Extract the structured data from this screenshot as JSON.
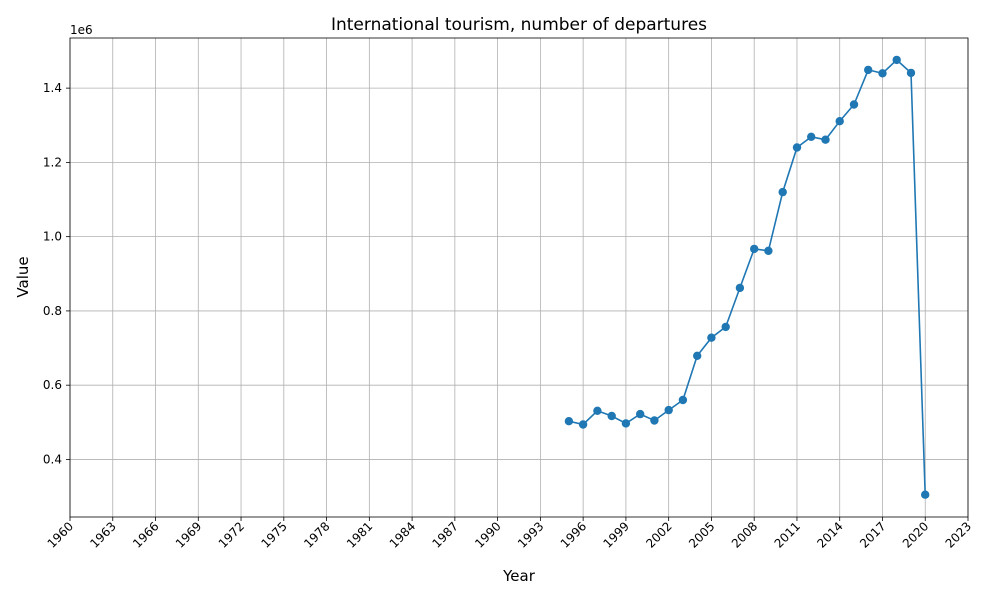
{
  "chart_data": {
    "type": "line",
    "title": "International tourism, number of departures",
    "xlabel": "Year",
    "ylabel": "Value",
    "y_offset_label": "1e6",
    "grid": true,
    "xlim": [
      1960,
      2023
    ],
    "ylim": [
      0.245,
      1.535
    ],
    "x_ticks": [
      1960,
      1963,
      1966,
      1969,
      1972,
      1975,
      1978,
      1981,
      1984,
      1987,
      1990,
      1993,
      1996,
      1999,
      2002,
      2005,
      2008,
      2011,
      2014,
      2017,
      2020,
      2023
    ],
    "y_ticks": [
      0.4,
      0.6,
      0.8,
      1.0,
      1.2,
      1.4
    ],
    "y_tick_labels": [
      "0.4",
      "0.6",
      "0.8",
      "1.0",
      "1.2",
      "1.4"
    ],
    "series_color": "#1f77b4",
    "x": [
      1995,
      1996,
      1997,
      1998,
      1999,
      2000,
      2001,
      2002,
      2003,
      2004,
      2005,
      2006,
      2007,
      2008,
      2009,
      2010,
      2011,
      2012,
      2013,
      2014,
      2015,
      2016,
      2017,
      2018,
      2019,
      2020
    ],
    "values": [
      0.503,
      0.494,
      0.531,
      0.517,
      0.497,
      0.522,
      0.505,
      0.533,
      0.56,
      0.679,
      0.728,
      0.757,
      0.862,
      0.967,
      0.962,
      1.12,
      1.24,
      1.269,
      1.261,
      1.311,
      1.356,
      1.449,
      1.44,
      1.476,
      1.441,
      0.305
    ]
  }
}
